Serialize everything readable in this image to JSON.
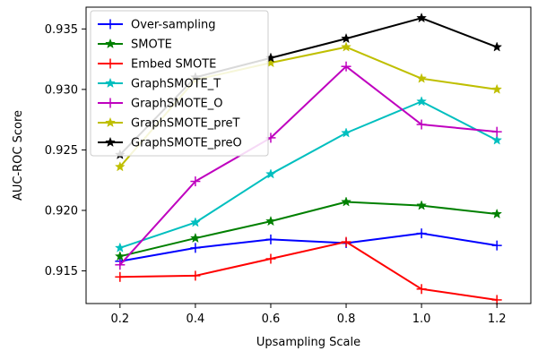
{
  "chart_data": {
    "type": "line",
    "title": "",
    "xlabel": "Upsampling Scale",
    "ylabel": "AUC-ROC Score",
    "x": [
      0.2,
      0.4,
      0.6,
      0.8,
      1.0,
      1.2
    ],
    "xlim": [
      0.11,
      1.29
    ],
    "ylim": [
      0.9123,
      0.9368
    ],
    "xticks": [
      0.2,
      0.4,
      0.6,
      0.8,
      1.0,
      1.2
    ],
    "xtick_labels": [
      "0.2",
      "0.4",
      "0.6",
      "0.8",
      "1.0",
      "1.2"
    ],
    "yticks": [
      0.915,
      0.92,
      0.925,
      0.93,
      0.935
    ],
    "ytick_labels": [
      "0.915",
      "0.920",
      "0.925",
      "0.930",
      "0.935"
    ],
    "grid": false,
    "legend_position": "upper-left",
    "series": [
      {
        "name": "Over-sampling",
        "color": "#0000ff",
        "marker": "plus",
        "values": [
          0.9158,
          0.9169,
          0.9176,
          0.9173,
          0.9181,
          0.9171
        ]
      },
      {
        "name": "SMOTE",
        "color": "#008000",
        "marker": "star",
        "values": [
          0.9162,
          0.9177,
          0.9191,
          0.9207,
          0.9204,
          0.9197
        ]
      },
      {
        "name": "Embed SMOTE",
        "color": "#ff0000",
        "marker": "plus",
        "values": [
          0.9145,
          0.9146,
          0.916,
          0.9174,
          0.9135,
          0.9126
        ]
      },
      {
        "name": "GraphSMOTE_T",
        "color": "#00bfbf",
        "marker": "star",
        "values": [
          0.9169,
          0.919,
          0.923,
          0.9264,
          0.929,
          0.9258
        ]
      },
      {
        "name": "GraphSMOTE_O",
        "color": "#bf00bf",
        "marker": "plus",
        "values": [
          0.9155,
          0.9224,
          0.926,
          0.9319,
          0.9271,
          0.9265
        ]
      },
      {
        "name": "GraphSMOTE_preT",
        "color": "#bfbf00",
        "marker": "star",
        "values": [
          0.9236,
          0.9308,
          0.9322,
          0.9335,
          0.9309,
          0.93
        ]
      },
      {
        "name": "GraphSMOTE_preO",
        "color": "#000000",
        "marker": "star",
        "values": [
          0.9246,
          0.931,
          0.9326,
          0.9342,
          0.9359,
          0.9335
        ]
      }
    ]
  }
}
